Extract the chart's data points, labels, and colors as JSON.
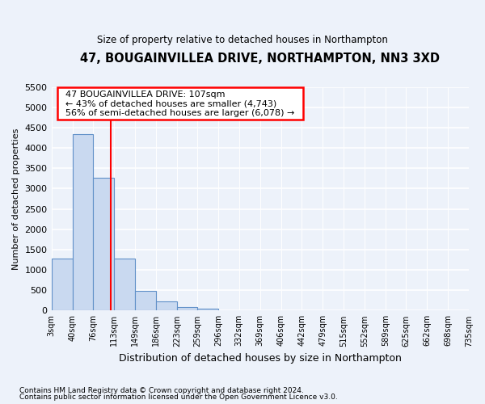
{
  "title": "47, BOUGAINVILLEA DRIVE, NORTHAMPTON, NN3 3XD",
  "subtitle": "Size of property relative to detached houses in Northampton",
  "xlabel": "Distribution of detached houses by size in Northampton",
  "ylabel": "Number of detached properties",
  "footnote1": "Contains HM Land Registry data © Crown copyright and database right 2024.",
  "footnote2": "Contains public sector information licensed under the Open Government Licence v3.0.",
  "annotation_title": "47 BOUGAINVILLEA DRIVE: 107sqm",
  "annotation_line1": "← 43% of detached houses are smaller (4,743)",
  "annotation_line2": "56% of semi-detached houses are larger (6,078) →",
  "property_size": 107,
  "bin_edges": [
    3,
    40,
    76,
    113,
    149,
    186,
    223,
    259,
    296,
    332,
    369,
    406,
    442,
    479,
    515,
    552,
    589,
    625,
    662,
    698,
    735
  ],
  "bar_heights": [
    1270,
    4330,
    3270,
    1280,
    490,
    215,
    90,
    55,
    0,
    0,
    0,
    0,
    0,
    0,
    0,
    0,
    0,
    0,
    0,
    0
  ],
  "bar_color": "#c9d9f0",
  "bar_edge_color": "#6090c8",
  "vline_color": "red",
  "ylim": [
    0,
    5500
  ],
  "yticks": [
    0,
    500,
    1000,
    1500,
    2000,
    2500,
    3000,
    3500,
    4000,
    4500,
    5000,
    5500
  ],
  "background_color": "#edf2fa",
  "grid_color": "#ffffff",
  "annotation_box_color": "white",
  "annotation_box_edge": "red"
}
